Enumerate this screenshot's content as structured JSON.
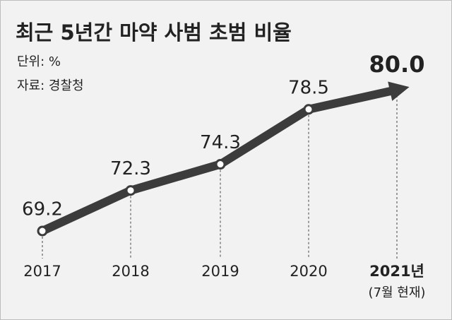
{
  "chart_data": {
    "type": "line",
    "title": "최근 5년간 마약 사범 초범 비율",
    "subtitle": "단위: %",
    "source": "자료: 경찰청",
    "categories": [
      "2017",
      "2018",
      "2019",
      "2020",
      "2021년"
    ],
    "category_note": "(7월 현재)",
    "values": [
      69.2,
      72.3,
      74.3,
      78.5,
      80.0
    ],
    "value_labels": [
      "69.2",
      "72.3",
      "74.3",
      "78.5",
      "80.0"
    ],
    "color": "#3c3c3c"
  }
}
